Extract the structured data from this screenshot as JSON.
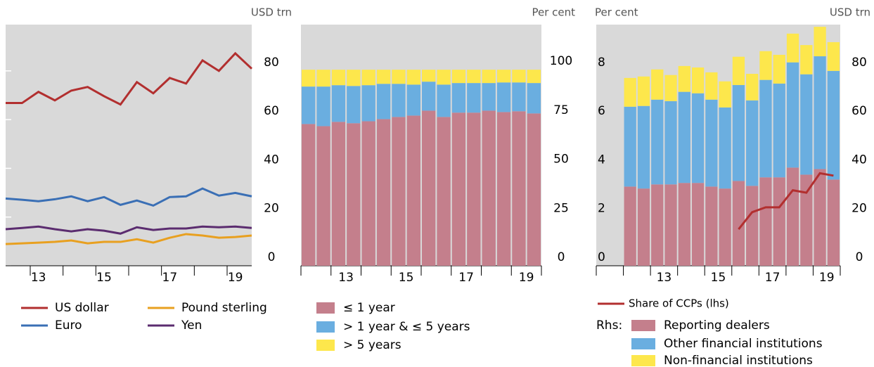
{
  "chart_data": [
    {
      "type": "line",
      "y_label": "USD trn",
      "y_axis_side": "right",
      "categories": [
        null,
        null,
        "13",
        null,
        null,
        null,
        "15",
        null,
        null,
        null,
        "17",
        null,
        null,
        null,
        "19",
        null
      ],
      "ylim": [
        0,
        99
      ],
      "yticks": [
        0,
        20,
        40,
        60,
        80
      ],
      "grid": true,
      "series": [
        {
          "name": "US dollar",
          "color": "#b22f2f",
          "values": [
            66.8,
            66.8,
            71.4,
            67.9,
            71.9,
            73.4,
            69.6,
            66.2,
            75.4,
            70.8,
            77.1,
            74.8,
            84.3,
            80,
            87.2,
            80.9
          ]
        },
        {
          "name": "Pound sterling",
          "color": "#e8a020",
          "values": [
            8.9,
            9.2,
            9.5,
            9.8,
            10.4,
            9.2,
            9.8,
            9.8,
            10.9,
            9.5,
            11.5,
            13,
            12.4,
            11.5,
            11.8,
            12.4
          ]
        },
        {
          "name": "Euro",
          "color": "#3a6fb5",
          "values": [
            27.6,
            27.1,
            26.5,
            27.3,
            28.5,
            26.5,
            28.2,
            25,
            26.8,
            24.7,
            28.2,
            28.5,
            31.7,
            28.8,
            29.9,
            28.5
          ]
        },
        {
          "name": "Yen",
          "color": "#5b2c6f",
          "values": [
            15,
            15.5,
            16.1,
            15,
            14.1,
            15,
            14.4,
            13.2,
            15.8,
            14.7,
            15.3,
            15.3,
            16.1,
            15.8,
            16.1,
            15.5
          ]
        }
      ]
    },
    {
      "type": "bar",
      "stacked": true,
      "y_label": "Per cent",
      "y_axis_side": "right",
      "categories": [
        null,
        null,
        "13",
        null,
        null,
        null,
        "15",
        null,
        null,
        null,
        "17",
        null,
        null,
        null,
        "19",
        null
      ],
      "ylim": [
        0,
        123
      ],
      "yticks": [
        0,
        25,
        50,
        75,
        100
      ],
      "grid": false,
      "series": [
        {
          "name": "≤ 1 year",
          "color": "#c47f8c",
          "values": [
            72.3,
            71.2,
            73.4,
            72.7,
            73.7,
            74.8,
            75.9,
            76.6,
            79.1,
            75.9,
            78.1,
            78.1,
            79.1,
            78.4,
            78.8,
            77.7
          ]
        },
        {
          "name": "> 1 year & ≤ 5 years",
          "color": "#6aaee0",
          "values": [
            19.1,
            20.2,
            18.7,
            19.0,
            18.4,
            18.0,
            16.9,
            15.8,
            14.8,
            16.5,
            15.1,
            15.1,
            14.1,
            15.1,
            14.7,
            15.5
          ]
        },
        {
          "name": "> 5 years",
          "color": "#fde74c",
          "values": [
            8.6,
            8.6,
            7.9,
            8.3,
            7.9,
            7.2,
            7.2,
            7.6,
            6.1,
            7.6,
            6.8,
            6.8,
            6.8,
            6.5,
            6.5,
            6.8
          ]
        }
      ]
    },
    {
      "type": "bar",
      "stacked": true,
      "y_label": "Per cent",
      "y_axis_side": "left",
      "y2_label": "USD trn",
      "legend_title": "Rhs:",
      "categories": [
        null,
        null,
        null,
        null,
        "13",
        null,
        null,
        null,
        "15",
        null,
        null,
        null,
        "17",
        null,
        null,
        null,
        "19",
        null
      ],
      "ylim": [
        0,
        9.9
      ],
      "yticks": [
        0,
        2,
        4,
        6,
        8
      ],
      "y2lim": [
        0,
        99
      ],
      "y2ticks": [
        0,
        20,
        40,
        60,
        80
      ],
      "grid": false,
      "series": [
        {
          "name": "Share of CCPs (lhs)",
          "type": "line",
          "color": "#b22f2f",
          "values": [
            null,
            null,
            null,
            null,
            null,
            null,
            null,
            null,
            null,
            null,
            1.5,
            2.2,
            2.4,
            2.4,
            3.1,
            3.0,
            3.8,
            3.7
          ]
        },
        {
          "name": "Reporting dealers",
          "axis": "y2",
          "color": "#c47f8c",
          "values": [
            null,
            null,
            32.5,
            31.7,
            33.4,
            33.4,
            34,
            34,
            32.5,
            31.7,
            34.8,
            32.8,
            36.3,
            36.3,
            40.3,
            37.4,
            39.7,
            35.4
          ]
        },
        {
          "name": "Other financial institutions",
          "axis": "y2",
          "color": "#6aaee0",
          "values": [
            null,
            null,
            32.8,
            33.9,
            34.8,
            34.2,
            37.4,
            36.8,
            35.7,
            33.3,
            39.4,
            35.1,
            40,
            38.5,
            43.2,
            41.2,
            46.3,
            44.6
          ]
        },
        {
          "name": "Non-financial institutions",
          "axis": "y2",
          "color": "#fde74c",
          "values": [
            null,
            null,
            11.8,
            12.1,
            12.4,
            10.7,
            10.6,
            10.6,
            11.2,
            10.7,
            11.6,
            10.9,
            11.8,
            11.8,
            11.8,
            12,
            12.1,
            11.8
          ]
        }
      ]
    }
  ]
}
